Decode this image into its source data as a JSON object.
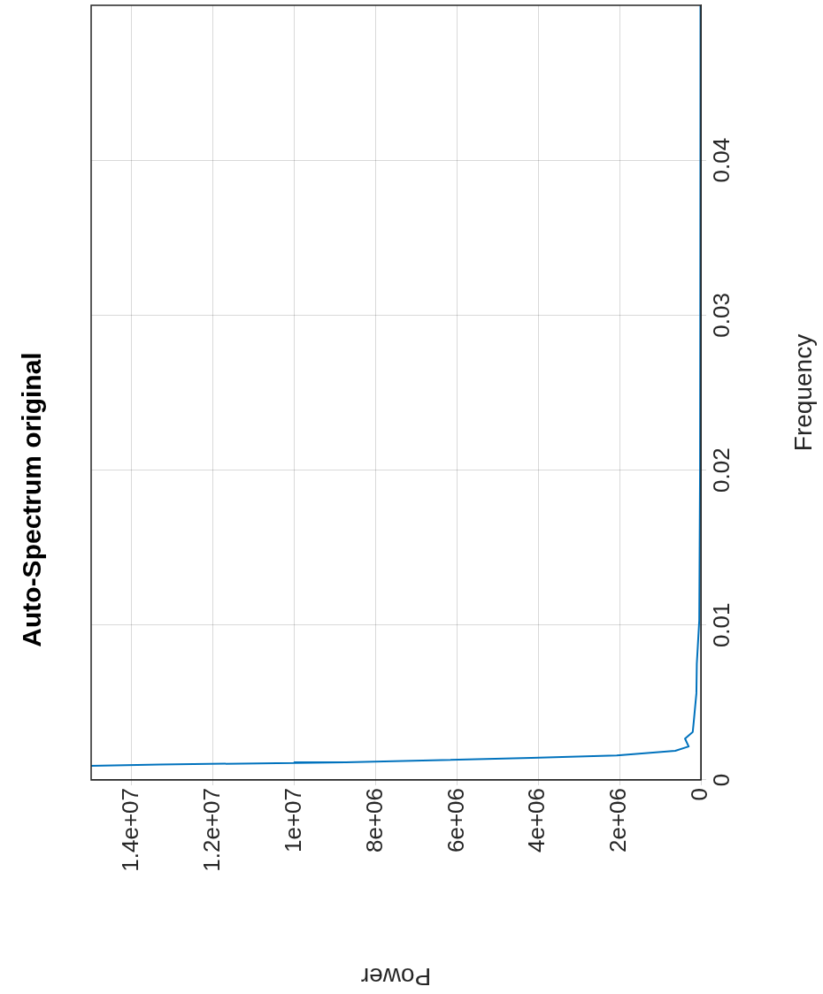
{
  "chart_data": {
    "type": "line",
    "title": "Auto-Spectrum original",
    "xlabel": "Power",
    "ylabel": "Frequency",
    "x": [
      15000000,
      13300000,
      10000000,
      8740000,
      4170000,
      2070000,
      630000,
      300000,
      390000,
      200000,
      170000,
      110000,
      100000,
      40000,
      20000,
      15000,
      12000,
      10000
    ],
    "series": [
      {
        "color": "#0072bd",
        "values": [
          0.00091,
          0.001,
          0.0011,
          0.00114,
          0.00142,
          0.00159,
          0.00188,
          0.00216,
          0.00267,
          0.0031,
          0.0039,
          0.0056,
          0.0075,
          0.0103,
          0.02,
          0.03,
          0.04,
          0.05
        ]
      }
    ],
    "xlim": [
      15000000,
      0
    ],
    "xticks": [
      {
        "value": 14000000,
        "label": "1.4e+07"
      },
      {
        "value": 12000000,
        "label": "1.2e+07"
      },
      {
        "value": 10000000,
        "label": "1e+07"
      },
      {
        "value": 8000000,
        "label": "8e+06"
      },
      {
        "value": 6000000,
        "label": "6e+06"
      },
      {
        "value": 4000000,
        "label": "4e+06"
      },
      {
        "value": 2000000,
        "label": "2e+06"
      },
      0
    ],
    "ylim": [
      0,
      0.05
    ],
    "yticks": [
      0,
      0.01,
      0.02,
      0.03,
      0.04
    ],
    "grid": true,
    "legend": false,
    "marker": "none",
    "line_style": "solid"
  }
}
